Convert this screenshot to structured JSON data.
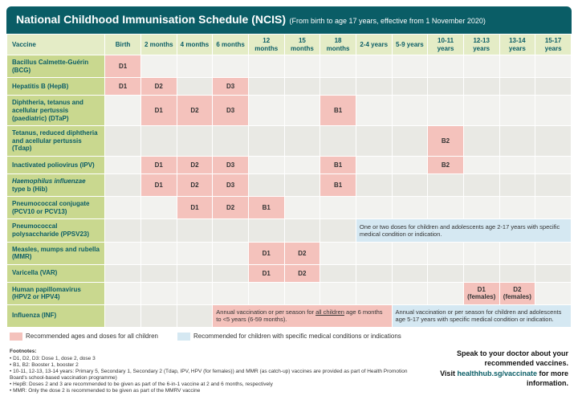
{
  "header": {
    "title": "National Childhood Immunisation Schedule (NCIS)",
    "subtitle": "(From birth to age 17 years, effective from 1 November 2020)"
  },
  "columns": {
    "vaccine": "Vaccine",
    "ages": [
      "Birth",
      "2 months",
      "4 months",
      "6 months",
      "12 months",
      "15 months",
      "18 months",
      "2-4 years",
      "5-9 years",
      "10-11 years",
      "12-13 years",
      "13-14 years",
      "15-17 years"
    ]
  },
  "vaccines": {
    "bcg": {
      "name": "Bacillus Calmette-Guérin (BCG)"
    },
    "hepb": {
      "name": "Hepatitis B (HepB)"
    },
    "dtap": {
      "name": "Diphtheria, tetanus and acellular pertussis (paediatric) (DTaP)"
    },
    "tdap": {
      "name": "Tetanus, reduced diphtheria and acellular pertussis (Tdap)"
    },
    "ipv": {
      "name": "Inactivated poliovirus (IPV)"
    },
    "hib": {
      "name": "Haemophilus influenzae type b (Hib)",
      "italicPart": "Haemophilus influenzae"
    },
    "pcv": {
      "name": "Pneumococcal conjugate (PCV10 or PCV13)"
    },
    "ppsv": {
      "name": "Pneumococcal polysaccharide (PPSV23)"
    },
    "mmr": {
      "name": "Measles, mumps and rubella (MMR)"
    },
    "var": {
      "name": "Varicella (VAR)"
    },
    "hpv": {
      "name": "Human papillomavirus (HPV2 or HPV4)"
    },
    "inf": {
      "name": "Influenza (INF)"
    }
  },
  "doses": {
    "d1": "D1",
    "d2": "D2",
    "d3": "D3",
    "b1": "B1",
    "b2": "B2",
    "hpv_d1": "D1 (females)",
    "hpv_d2": "D2 (females)"
  },
  "notes": {
    "ppsv": "One or two doses for children and adolescents age 2-17 years with specific medical condition or indication.",
    "inf_pink": "Annual vaccination or per season for all children age 6 months to <5 years (6-59 months).",
    "inf_blue": "Annual vaccination or per season for children and adolescents age 5-17 years with specific medical condition or indication."
  },
  "legend": {
    "pink": "Recommended ages and doses for all children",
    "blue": "Recommended for children with specific medical conditions or indications"
  },
  "footnotes": {
    "heading": "Footnotes:",
    "lines": [
      "D1, D2, D3: Dose 1, dose 2, dose 3",
      "B1, B2: Booster 1, booster 2",
      "10-11, 12-13, 13-14 years: Primary 5, Secondary 1, Secondary 2 (Tdap, IPV, HPV (for females)) and MMR (as catch-up) vaccines are provided as part of Health Promotion Board's school-based vaccination programme)",
      "HepB: Doses 2 and 3 are recommended to be given as part of the 6-in-1 vaccine at 2 and 6 months, respectively",
      "MMR: Only the dose 2 is recommended to be given as part of the MMRV vaccine"
    ]
  },
  "cta": {
    "line1": "Speak to your doctor about your recommended vaccines.",
    "line2a": "Visit ",
    "link": "healthhub.sg/vaccinate",
    "line2b": " for more information."
  }
}
